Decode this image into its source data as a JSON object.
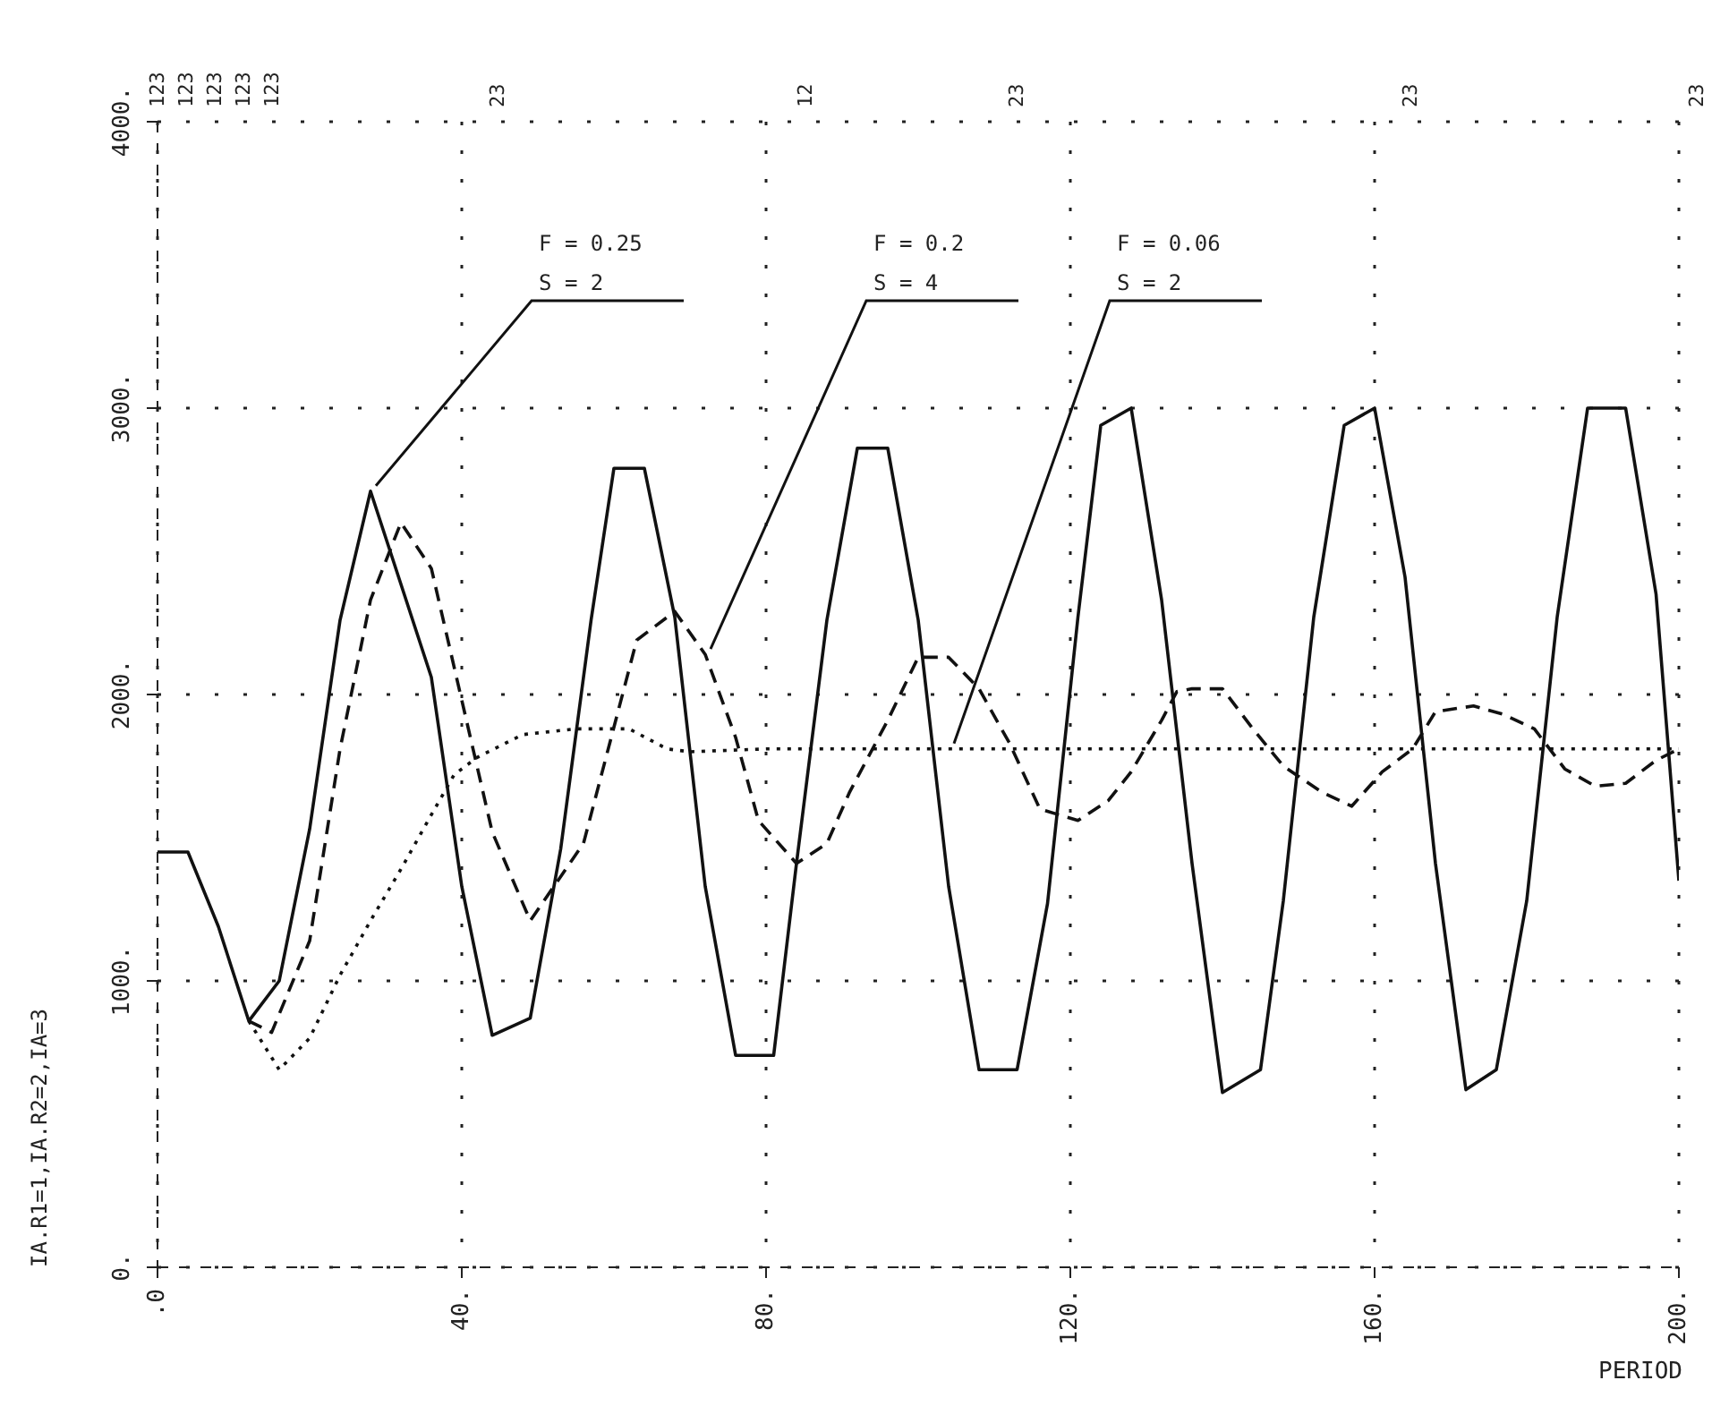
{
  "chart_data": {
    "type": "line",
    "xlabel": "PERIOD",
    "ylabel": "IA.R1=1,IA.R2=2,IA=3",
    "xlim": [
      0,
      200
    ],
    "xticks": [
      {
        "value": 0,
        "label": ".0"
      },
      {
        "value": 40,
        "label": "40."
      },
      {
        "value": 80,
        "label": "80."
      },
      {
        "value": 120,
        "label": "120."
      },
      {
        "value": 160,
        "label": "160."
      },
      {
        "value": 200,
        "label": "200."
      }
    ],
    "ylim": [
      0,
      4000
    ],
    "yticks": [
      {
        "value": 0,
        "label": "0."
      },
      {
        "value": 1000,
        "label": "1000."
      },
      {
        "value": 2000,
        "label": "2000."
      },
      {
        "value": 3000,
        "label": "3000."
      },
      {
        "value": 4000,
        "label": "4000."
      }
    ],
    "grid": true,
    "marker": "none",
    "series": [
      {
        "color": "#111111",
        "line_style": "solid",
        "x": [
          0,
          4,
          8,
          12,
          16,
          20,
          24,
          28,
          36,
          40,
          44,
          49,
          53,
          57,
          60,
          64,
          68,
          72,
          76,
          81,
          84,
          88,
          92,
          96,
          100,
          104,
          108,
          113,
          117,
          121,
          124,
          128,
          132,
          136,
          140,
          145,
          148,
          152,
          156,
          160,
          164,
          168,
          172,
          176,
          180,
          184,
          188,
          193,
          197,
          200
        ],
        "values": [
          1450,
          1450,
          1190,
          860,
          1000,
          1530,
          2260,
          2710,
          2060,
          1330,
          810,
          870,
          1460,
          2260,
          2790,
          2790,
          2270,
          1330,
          740,
          740,
          1410,
          2260,
          2860,
          2860,
          2260,
          1330,
          690,
          690,
          1270,
          2270,
          2940,
          3000,
          2330,
          1410,
          610,
          690,
          1280,
          2270,
          2940,
          3000,
          2410,
          1410,
          620,
          690,
          1280,
          2270,
          3000,
          3000,
          2350,
          1350
        ]
      },
      {
        "color": "#111111",
        "line_style": "dashed",
        "x": [
          12,
          15,
          20,
          24,
          28,
          32,
          36,
          40,
          44,
          49,
          56,
          63,
          68,
          72,
          76,
          79,
          84,
          88,
          91,
          96,
          100,
          104,
          108,
          112,
          116,
          121,
          125,
          128,
          132,
          134,
          136,
          140,
          144,
          148,
          153,
          157,
          161,
          165,
          168,
          173,
          177,
          181,
          185,
          189,
          193,
          197,
          200
        ],
        "values": [
          860,
          820,
          1140,
          1810,
          2330,
          2600,
          2440,
          1980,
          1520,
          1210,
          1480,
          2190,
          2290,
          2140,
          1850,
          1560,
          1410,
          1480,
          1660,
          1910,
          2130,
          2130,
          2020,
          1830,
          1600,
          1560,
          1630,
          1730,
          1910,
          2010,
          2020,
          2020,
          1880,
          1750,
          1660,
          1610,
          1730,
          1810,
          1940,
          1960,
          1930,
          1880,
          1740,
          1680,
          1690,
          1770,
          1810
        ]
      },
      {
        "color": "#111111",
        "line_style": "dotted",
        "x": [
          12,
          16,
          20,
          24,
          28,
          32,
          36,
          39,
          42,
          48,
          55,
          62,
          67,
          70,
          80,
          90,
          100,
          110,
          120,
          130,
          140,
          150,
          160,
          170,
          180,
          190,
          200
        ],
        "values": [
          860,
          690,
          800,
          1020,
          1210,
          1390,
          1580,
          1720,
          1780,
          1860,
          1880,
          1880,
          1810,
          1800,
          1810,
          1810,
          1810,
          1810,
          1810,
          1810,
          1810,
          1810,
          1810,
          1810,
          1810,
          1810,
          1810
        ]
      }
    ],
    "annotations": [
      {
        "text": "F = 0.25\nS = 2",
        "x": 28,
        "y": 2710
      },
      {
        "text": "F = 0.2\nS = 4",
        "x": 72,
        "y": 2140
      },
      {
        "text": "F = 0.06\nS = 2",
        "x": 104,
        "y": 1810
      },
      "123",
      "123",
      "123",
      "123",
      "123",
      "23",
      "12",
      "23",
      "23",
      "23"
    ]
  }
}
